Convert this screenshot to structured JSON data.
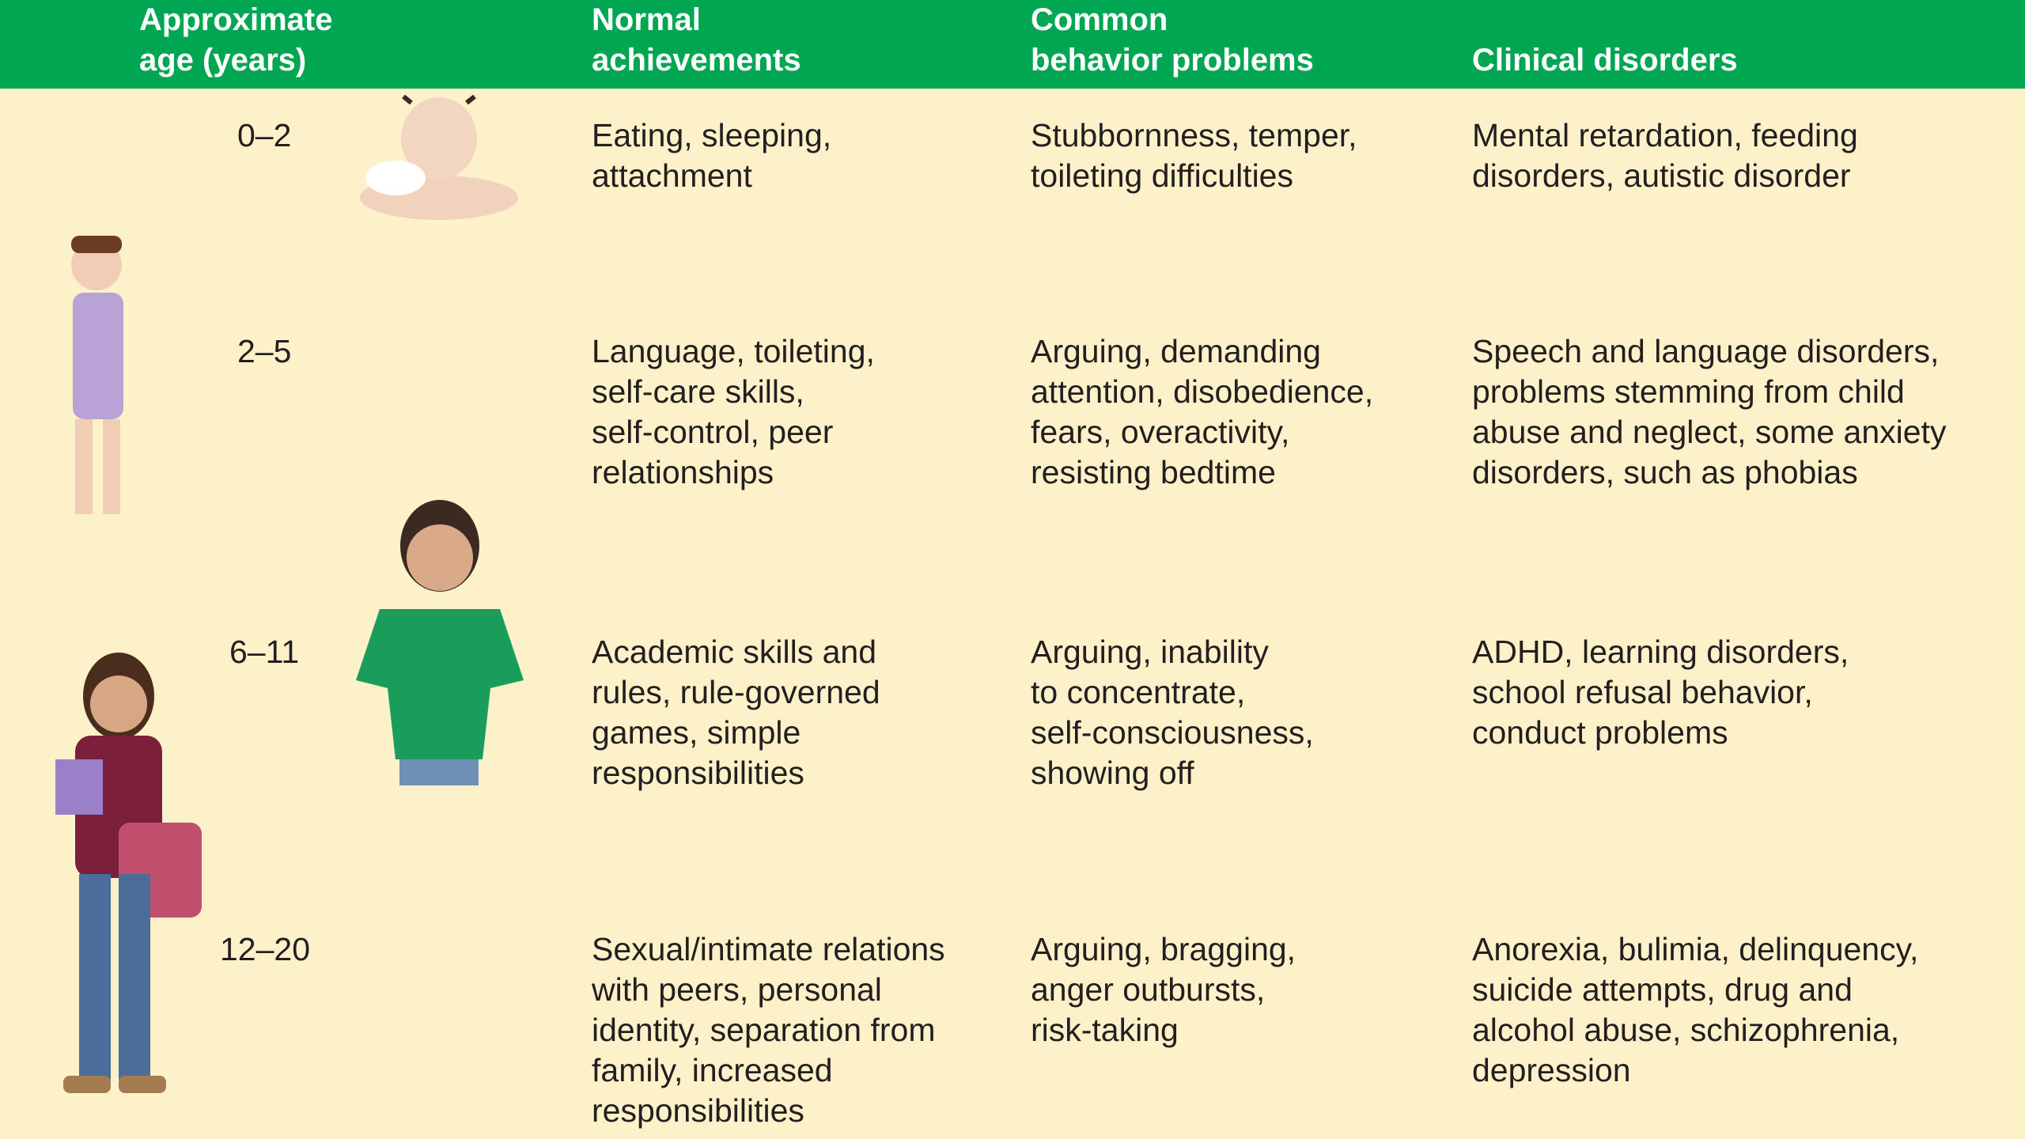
{
  "table": {
    "header": [
      [
        "Approximate",
        "age (years)"
      ],
      [
        "Normal",
        "achievements"
      ],
      [
        "Common",
        "behavior problems"
      ],
      [
        "",
        "Clinical disorders"
      ]
    ],
    "rows": [
      {
        "age": "0–2",
        "achievements": [
          "Eating, sleeping,",
          "attachment"
        ],
        "problems": [
          "Stubbornness, temper,",
          "toileting difficulties"
        ],
        "disorders": [
          "Mental retardation, feeding",
          "disorders, autistic disorder"
        ]
      },
      {
        "age": "2–5",
        "achievements": [
          "Language, toileting,",
          "self-care skills,",
          "self-control, peer",
          "relationships"
        ],
        "problems": [
          "Arguing, demanding",
          "attention, disobedience,",
          "fears, overactivity,",
          "resisting bedtime"
        ],
        "disorders": [
          "Speech and language disorders,",
          "problems stemming from child",
          "abuse and neglect, some anxiety",
          "disorders, such as phobias"
        ]
      },
      {
        "age": "6–11",
        "achievements": [
          "Academic skills and",
          "rules, rule-governed",
          "games, simple",
          "responsibilities"
        ],
        "problems": [
          "Arguing, inability",
          "to concentrate,",
          "self-consciousness,",
          "showing off"
        ],
        "disorders": [
          "ADHD, learning disorders,",
          "school refusal behavior,",
          "conduct problems"
        ]
      },
      {
        "age": "12–20",
        "achievements": [
          "Sexual/intimate relations",
          "with peers, personal",
          "identity, separation from",
          "family, increased",
          "responsibilities"
        ],
        "problems": [
          "Arguing, bragging,",
          "anger outbursts,",
          "risk-taking"
        ],
        "disorders": [
          "Anorexia, bulimia, delinquency,",
          "suicide attempts, drug and",
          "alcohol abuse, schizophrenia,",
          "depression"
        ]
      }
    ]
  }
}
